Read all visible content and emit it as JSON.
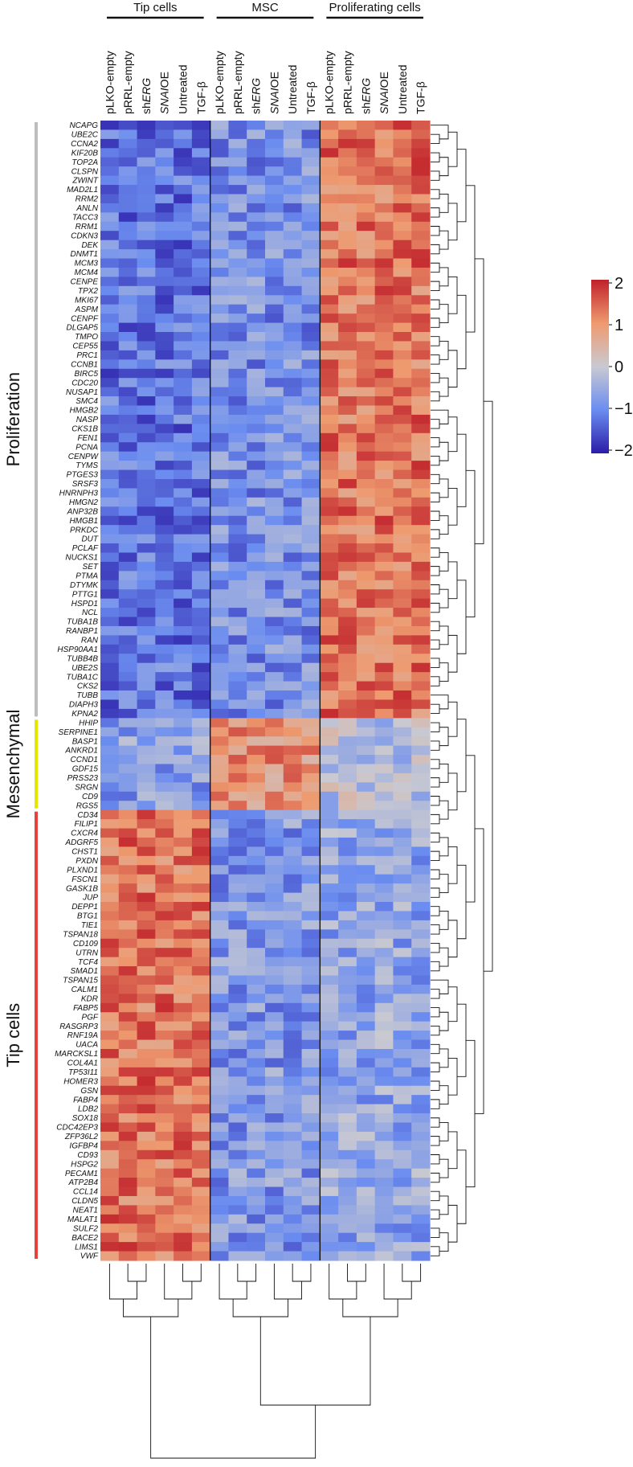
{
  "chart_data": {
    "type": "heatmap",
    "title": "",
    "col_groups": [
      {
        "label": "Tip cells",
        "columns": [
          "pLKO-empty",
          "pRRL-empty",
          "shERG",
          "SNAI OE",
          "Untreated",
          "TGF-β"
        ]
      },
      {
        "label": "MSC",
        "columns": [
          "pLKO-empty",
          "pRRL-empty",
          "shERG",
          "SNAI OE",
          "Untreated",
          "TGF-β"
        ]
      },
      {
        "label": "Proliferating cells",
        "columns": [
          "pLKO-empty",
          "pRRL-empty",
          "shERG",
          "SNAI OE",
          "Untreated",
          "TGF-β"
        ]
      }
    ],
    "column_labels": [
      {
        "pre": "pLKO-empty",
        "it": "",
        "sup": "",
        "post": ""
      },
      {
        "pre": "pRRL-empty",
        "it": "",
        "sup": "",
        "post": ""
      },
      {
        "pre": "sh",
        "it": "ERG",
        "sup": "",
        "post": ""
      },
      {
        "pre": "",
        "it": "SNAI",
        "sup": "",
        "post": "OE"
      },
      {
        "pre": "Untreated",
        "it": "",
        "sup": "",
        "post": ""
      },
      {
        "pre": "TGF-β",
        "it": "",
        "sup": "",
        "post": ""
      }
    ],
    "row_sections": [
      {
        "label": "Proliferation",
        "color": "#bdbdbd",
        "genes": [
          "NCAPG",
          "UBE2C",
          "CCNA2",
          "KIF20B",
          "TOP2A",
          "CLSPN",
          "ZWINT",
          "MAD2L1",
          "RRM2",
          "ANLN",
          "TACC3",
          "RRM1",
          "CDKN3",
          "DEK",
          "DNMT1",
          "MCM3",
          "MCM4",
          "CENPE",
          "TPX2",
          "MKI67",
          "ASPM",
          "CENPF",
          "DLGAP5",
          "TMPO",
          "CEP55",
          "PRC1",
          "CCNB1",
          "BIRC5",
          "CDC20",
          "NUSAP1",
          "SMC4",
          "HMGB2",
          "NASP",
          "CKS1B",
          "FEN1",
          "PCNA",
          "CENPW",
          "TYMS",
          "PTGES3",
          "SRSF3",
          "HNRNPH3",
          "HMGN2",
          "ANP32B",
          "HMGB1",
          "PRKDC",
          "DUT",
          "PCLAF",
          "NUCKS1",
          "SET",
          "PTMA",
          "DTYMK",
          "PTTG1",
          "HSPD1",
          "NCL",
          "TUBA1B",
          "RANBP1",
          "RAN",
          "HSP90AA1",
          "TUBB4B",
          "UBE2S",
          "TUBA1C",
          "CKS2",
          "TUBB",
          "DIAPH3",
          "KPNA2"
        ]
      },
      {
        "label": "Mesenchymal",
        "color": "#e6e600",
        "genes": [
          "HHIP",
          "SERPINE1",
          "BASP1",
          "ANKRD1",
          "CCND1",
          "GDF15",
          "PRSS23",
          "SRGN",
          "CD9",
          "RGS5"
        ]
      },
      {
        "label": "Tip cells",
        "color": "#e8413b",
        "genes": [
          "CD34",
          "FILIP1",
          "CXCR4",
          "ADGRF5",
          "CHST1",
          "PXDN",
          "PLXND1",
          "FSCN1",
          "GASK1B",
          "JUP",
          "DEPP1",
          "BTG1",
          "TIE1",
          "TSPAN18",
          "CD109",
          "UTRN",
          "TCF4",
          "SMAD1",
          "TSPAN15",
          "CALM1",
          "KDR",
          "FABP5",
          "PGF",
          "RASGRP3",
          "RNF19A",
          "UACA",
          "MARCKSL1",
          "COL4A1",
          "TP53I11",
          "HOMER3",
          "GSN",
          "FABP4",
          "LDB2",
          "SOX18",
          "CDC42EP3",
          "ZFP36L2",
          "IGFBP4",
          "CD93",
          "HSPG2",
          "PECAM1",
          "ATP2B4",
          "CCL14",
          "CLDN5",
          "NEAT1",
          "MALAT1",
          "SULF2",
          "BACE2",
          "LIMS1",
          "VWF"
        ]
      }
    ],
    "group_means": {
      "Proliferation": [
        -1.2,
        -0.9,
        1.3
      ],
      "Mesenchymal": [
        -0.7,
        1.0,
        -0.2
      ],
      "Tip cells": [
        1.3,
        -0.8,
        -0.6
      ]
    },
    "legend": {
      "ticks": [
        "2",
        "1",
        "0",
        "−1",
        "−2"
      ],
      "range": [
        -2,
        2
      ],
      "colors": [
        "#2b1ca8",
        "#6b8df0",
        "#c9c9d1",
        "#ee9a6f",
        "#c0212a"
      ]
    }
  }
}
